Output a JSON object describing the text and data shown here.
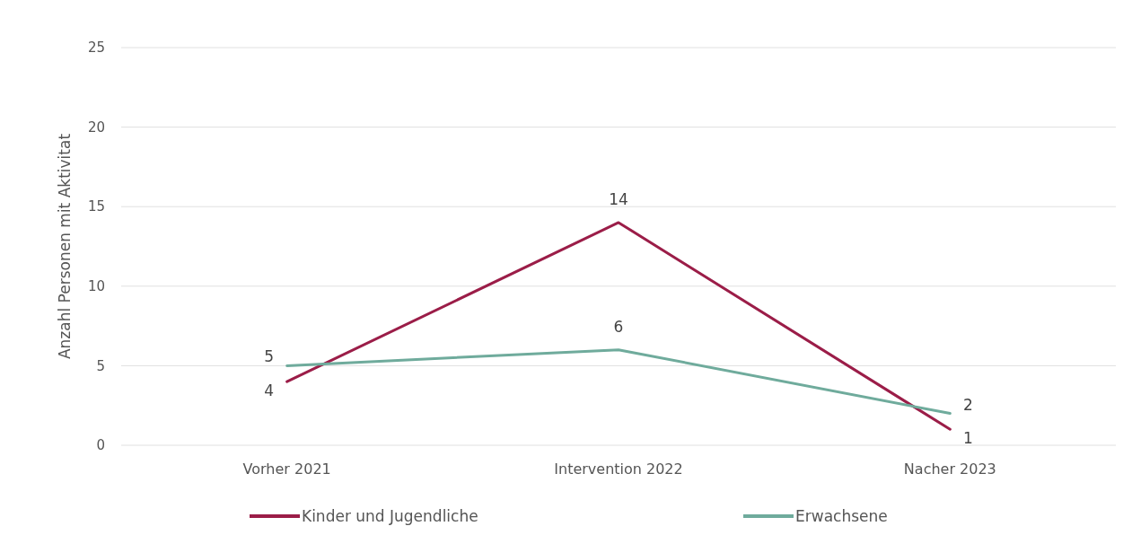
{
  "chart_data": {
    "type": "line",
    "ylabel": "Anzahl Personen mit Aktivitat",
    "categories": [
      "Vorher 2021",
      "Intervention 2022",
      "Nacher 2023"
    ],
    "series": [
      {
        "name": "Kinder und Jugendliche",
        "color": "#9b1d48",
        "values": [
          4,
          14,
          1
        ]
      },
      {
        "name": "Erwachsene",
        "color": "#6fab9c",
        "values": [
          5,
          6,
          2
        ]
      }
    ],
    "ylim": [
      0,
      25
    ],
    "yticks": [
      0,
      5,
      10,
      15,
      20,
      25
    ],
    "grid": "y",
    "legend": "bottom",
    "data_labels": true,
    "marker": "none",
    "line_style": "solid"
  }
}
